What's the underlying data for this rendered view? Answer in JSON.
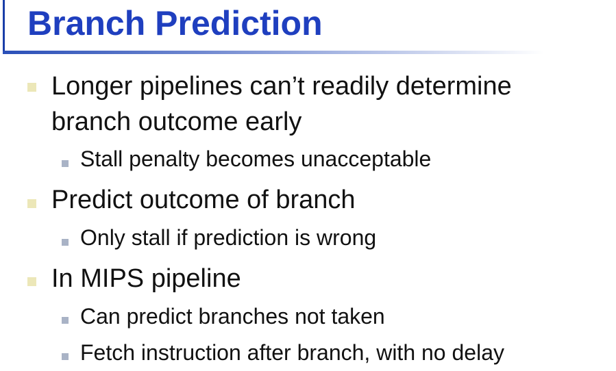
{
  "slide": {
    "title": "Branch Prediction",
    "bullets": [
      {
        "lines": [
          "Longer pipelines can’t readily determine",
          "branch outcome early"
        ],
        "subbullets": [
          "Stall penalty becomes unacceptable"
        ]
      },
      {
        "lines": [
          "Predict outcome of branch"
        ],
        "subbullets": [
          "Only stall if prediction is wrong"
        ]
      },
      {
        "lines": [
          "In MIPS pipeline"
        ],
        "subbullets": [
          "Can predict branches not taken",
          "Fetch instruction after branch, with no delay"
        ]
      }
    ]
  },
  "colors": {
    "title": "#1f3fbf",
    "rule": "#2a4fb8",
    "level1_marker": "#ece7b8",
    "level2_marker": "#a9b3c6"
  }
}
